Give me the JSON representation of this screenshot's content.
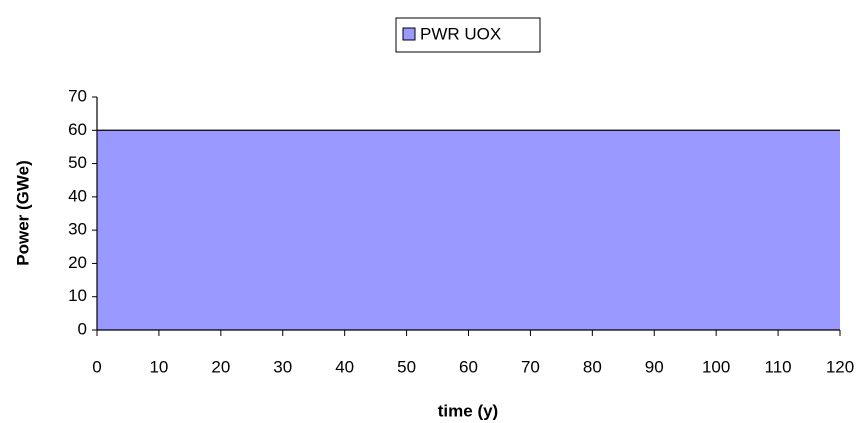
{
  "chart_data": {
    "type": "area",
    "legend": "top",
    "x_label": "time (y)",
    "y_label": "Power (GWe)",
    "x": [
      0,
      120
    ],
    "series": [
      {
        "name": "PWR UOX",
        "color": "#9999ff",
        "values": [
          60,
          60
        ]
      }
    ],
    "xlim": [
      0,
      120
    ],
    "xticks": [
      0,
      10,
      20,
      30,
      40,
      50,
      60,
      70,
      80,
      90,
      100,
      110,
      120
    ],
    "ylim": [
      0,
      70
    ],
    "yticks": [
      0,
      10,
      20,
      30,
      40,
      50,
      60,
      70
    ],
    "grid": false
  }
}
